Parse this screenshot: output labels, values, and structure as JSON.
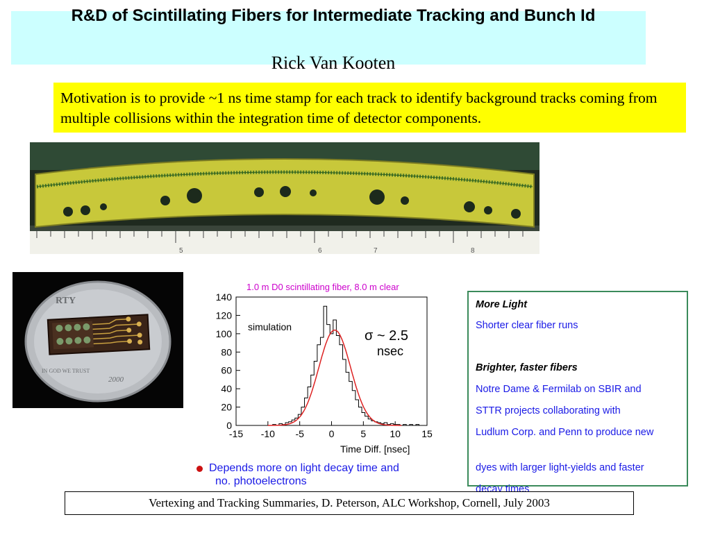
{
  "slide": {
    "title": "R&D of Scintillating Fibers for Intermediate Tracking and Bunch Id",
    "author": "Rick Van Kooten",
    "motivation": "Motivation is to provide ~1 ns time stamp for each track to identify background tracks coming from multiple collisions within the integration time of detector components.",
    "footer": "Vertexing and Tracking Summaries, D. Peterson,  ALC Workshop, Cornell, July 2003"
  },
  "photos": {
    "fiber_ruler_ticks": [
      "5",
      "6",
      "7",
      "8"
    ],
    "coin_text_top": "RTY",
    "coin_text_left": "IN GOD WE TRUST",
    "coin_text_year": "2000"
  },
  "plot": {
    "annotation_simulation": "simulation",
    "sigma_line1": "σ ~ 2.5",
    "sigma_line2": "nsec",
    "bullet_line1": "Depends more on light decay time and",
    "bullet_line2": "no. photoelectrons"
  },
  "chart_data": {
    "type": "line",
    "title": "1.0 m D0 scintillating fiber, 8.0 m clear",
    "xlabel": "Time Diff. [nsec]",
    "ylabel": "",
    "xlim": [
      -15,
      15
    ],
    "ylim": [
      0,
      140
    ],
    "x_ticks": [
      -15,
      -10,
      -5,
      0,
      5,
      10,
      15
    ],
    "y_ticks": [
      0,
      20,
      40,
      60,
      80,
      100,
      120,
      140
    ],
    "series": [
      {
        "kind": "histogram",
        "x": [
          -9,
          -8.5,
          -8,
          -7.5,
          -7,
          -6.5,
          -6,
          -5.5,
          -5,
          -4.5,
          -4,
          -3.5,
          -3,
          -2.5,
          -2,
          -1.5,
          -1,
          -0.5,
          0,
          0.5,
          1,
          1.5,
          2,
          2.5,
          3,
          3.5,
          4,
          4.5,
          5,
          5.5,
          6,
          6.5,
          7,
          7.5,
          8,
          8.5,
          9,
          9.5,
          10,
          10.5,
          11,
          11.5,
          12,
          12.5,
          13,
          13.5,
          14
        ],
        "y": [
          1,
          0,
          2,
          1,
          3,
          4,
          6,
          8,
          12,
          20,
          30,
          42,
          55,
          70,
          88,
          96,
          130,
          110,
          100,
          115,
          98,
          88,
          72,
          58,
          48,
          38,
          28,
          20,
          14,
          10,
          7,
          5,
          4,
          3,
          2,
          3,
          1,
          2,
          1,
          1,
          0,
          1,
          0,
          1,
          0,
          1,
          0
        ]
      },
      {
        "kind": "gaussian_fit",
        "mean": 0.5,
        "sigma": 2.5,
        "peak": 104,
        "color": "#dd2222"
      }
    ]
  },
  "notes": {
    "head1": "More Light",
    "line1": "Shorter clear fiber runs",
    "head2": "Brighter, faster fibers",
    "line2": "Notre Dame & Fermilab on SBIR and",
    "line3": "STTR projects collaborating with",
    "line4": "Ludlum Corp. and Penn to produce new",
    "line5": "dyes with larger light-yields and faster",
    "line6": "decay times"
  },
  "colors": {
    "title_band": "#ccffff",
    "motivation_band": "#ffff00",
    "notes_border": "#3a8a5a",
    "blue_text": "#1a1ae6",
    "plot_title": "#cc00cc"
  }
}
